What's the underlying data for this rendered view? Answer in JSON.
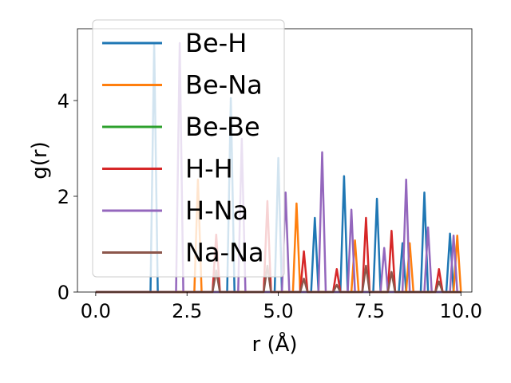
{
  "chart_data": {
    "type": "line",
    "xlabel": "r (Å)",
    "ylabel": "g(r)",
    "xlim": [
      -0.5,
      10.3
    ],
    "ylim": [
      0,
      5.5
    ],
    "xticks": [
      0.0,
      2.5,
      5.0,
      7.5,
      10.0
    ],
    "xtick_labels": [
      "0.0",
      "2.5",
      "5.0",
      "7.5",
      "10.0"
    ],
    "yticks": [
      0,
      2,
      4
    ],
    "ytick_labels": [
      "0",
      "2",
      "4"
    ],
    "legend_position": "upper-left",
    "grid": false,
    "series": [
      {
        "name": "Be-H",
        "color": "#1f77b4",
        "peaks": [
          [
            1.6,
            5.2
          ],
          [
            3.7,
            4.05
          ],
          [
            5.0,
            2.8
          ],
          [
            6.0,
            1.55
          ],
          [
            6.8,
            2.42
          ],
          [
            7.7,
            1.95
          ],
          [
            8.4,
            1.02
          ],
          [
            9.0,
            2.08
          ],
          [
            9.7,
            1.22
          ]
        ]
      },
      {
        "name": "Be-Na",
        "color": "#ff7f0e",
        "peaks": [
          [
            2.8,
            2.35
          ],
          [
            5.5,
            1.85
          ],
          [
            7.1,
            1.08
          ],
          [
            8.6,
            1.02
          ],
          [
            9.9,
            1.18
          ]
        ]
      },
      {
        "name": "Be-Be",
        "color": "#2ca02c",
        "peaks": []
      },
      {
        "name": "H-H",
        "color": "#d62728",
        "peaks": [
          [
            3.3,
            1.2
          ],
          [
            4.7,
            1.9
          ],
          [
            5.7,
            0.85
          ],
          [
            6.6,
            0.48
          ],
          [
            7.4,
            1.55
          ],
          [
            8.1,
            1.28
          ],
          [
            9.4,
            0.48
          ]
        ]
      },
      {
        "name": "H-Na",
        "color": "#9467bd",
        "peaks": [
          [
            2.3,
            5.2
          ],
          [
            4.0,
            3.2
          ],
          [
            5.2,
            2.08
          ],
          [
            6.2,
            2.92
          ],
          [
            7.0,
            1.72
          ],
          [
            7.9,
            0.92
          ],
          [
            8.5,
            2.35
          ],
          [
            9.1,
            1.35
          ],
          [
            9.8,
            1.18
          ]
        ]
      },
      {
        "name": "Na-Na",
        "color": "#8c564b",
        "peaks": [
          [
            3.3,
            0.45
          ],
          [
            4.7,
            0.55
          ],
          [
            5.7,
            0.28
          ],
          [
            6.6,
            0.15
          ],
          [
            7.4,
            0.55
          ],
          [
            8.1,
            0.42
          ],
          [
            9.4,
            0.22
          ]
        ]
      }
    ]
  }
}
